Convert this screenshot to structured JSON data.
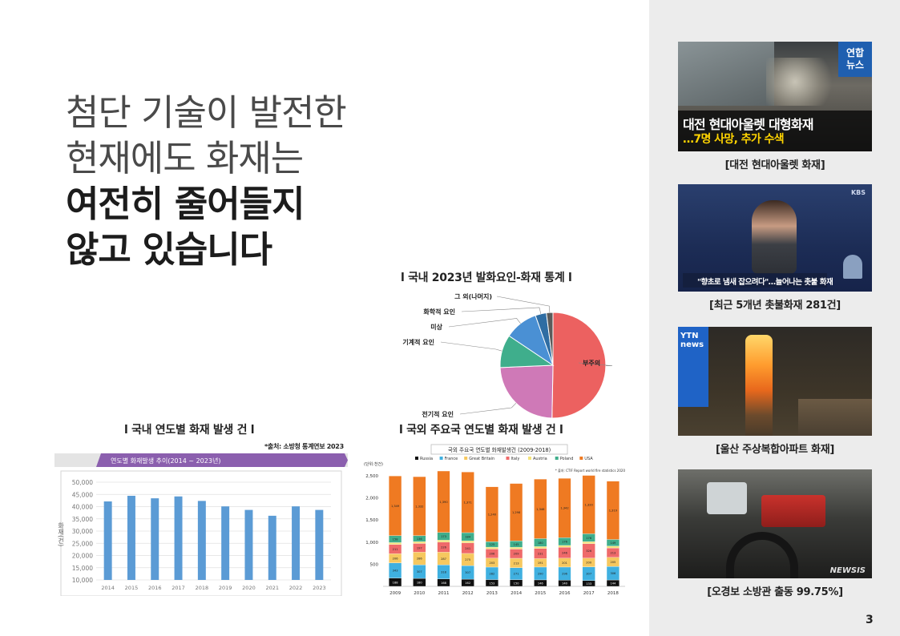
{
  "headline": {
    "line1": "첨단 기술이 발전한",
    "line2": "현재에도 화재는",
    "line3": "여전히 줄어들지",
    "line4": "않고 있습니다"
  },
  "sections": {
    "pie_title": "l 국내 2023년 발화요인-화재 통계 l",
    "domestic_title": "l 국내 연도별 화재 발생 건 l",
    "foreign_title": "l 국외 주요국 연도별 화재 발생 건 l"
  },
  "domestic_source": "*출처: 소방청 통계연보 2023",
  "domestic_header": "연도별 화재발생 추이(2014 ~ 2023년)",
  "domestic_ylabel": "화재(건)",
  "foreign_chart_title": "국외 주요국 연도별 화재발생건 (2009-2018)",
  "foreign_unit": "(단위:천건)",
  "foreign_source": "* 출처: CTIF Report world fire statistics 2020",
  "news": [
    {
      "caption": "[대전 현대아울렛 화재]",
      "badge": "연합\n뉴스",
      "overlay1": "대전 현대아울렛 대형화재",
      "overlay2": "…7명 사망, 추가 수색"
    },
    {
      "caption": "[최근 5개년 촛불화재 281건]",
      "badge": "KBS",
      "overlay1": "\"향초로 냄새 잡으려다\"…늘어나는 촛불 화재"
    },
    {
      "caption": "[울산 주상복합아파트 화재]",
      "badge": "YTN news"
    },
    {
      "caption": "[오경보 소방관 출동 99.75%]",
      "badge": "NEWSIS"
    }
  ],
  "page_number": "3",
  "chart_data": [
    {
      "type": "pie",
      "title": "l 국내 2023년 발화요인-화재 통계 l",
      "slices": [
        {
          "label": "부주의",
          "value": 50.3,
          "color": "#ec6160"
        },
        {
          "label": "전기적 요인",
          "value": 24.0,
          "color": "#cf79b7"
        },
        {
          "label": "기계적 요인",
          "value": 10.1,
          "color": "#3fae8c"
        },
        {
          "label": "미상",
          "value": 10.2,
          "color": "#4a90d4"
        },
        {
          "label": "화학적 요인",
          "value": 3.4,
          "color": "#2f6da3"
        },
        {
          "label": "그 외(나머지)",
          "value": 2.0,
          "color": "#5b5b5b"
        }
      ]
    },
    {
      "type": "bar",
      "title": "연도별 화재발생 추이(2014 ~ 2023년)",
      "categories": [
        "2014",
        "2015",
        "2016",
        "2017",
        "2018",
        "2019",
        "2020",
        "2021",
        "2022",
        "2023"
      ],
      "values": [
        42135,
        44435,
        43413,
        44178,
        42338,
        40103,
        38659,
        36267,
        40113,
        38659
      ],
      "ylabel": "화재(건)",
      "ylim": [
        10000,
        50000
      ],
      "yticks": [
        "50,000",
        "45,000",
        "40,000",
        "35,000",
        "30,000",
        "25,000",
        "20,000",
        "15,000",
        "10,000"
      ],
      "color": "#5b9bd5",
      "grid": true
    },
    {
      "type": "bar",
      "stacked": true,
      "title": "국외 주요국 연도별 화재발생건 (2009-2018)",
      "categories": [
        "2009",
        "2010",
        "2011",
        "2012",
        "2013",
        "2014",
        "2015",
        "2016",
        "2017",
        "2018"
      ],
      "yticks": [
        "2,500",
        "2,000",
        "1,500",
        "1,000",
        "500"
      ],
      "ylim": [
        0,
        2500
      ],
      "series": [
        {
          "name": "Russia",
          "color": "#111111",
          "values": [
            188,
            180,
            168,
            162,
            153,
            150,
            146,
            140,
            133,
            144
          ]
        },
        {
          "name": "France",
          "color": "#3fb0e0",
          "values": [
            343,
            307,
            318,
            307,
            282,
            271,
            290,
            296,
            307,
            306
          ]
        },
        {
          "name": "Great Britain",
          "color": "#f6c85f",
          "values": [
            206,
            286,
            287,
            275,
            203,
            213,
            191,
            201,
            200,
            205
          ]
        },
        {
          "name": "Italy",
          "color": "#ef6a6a",
          "values": [
            211,
            197,
            226,
            241,
            206,
            209,
            231,
            246,
            326,
            213
          ]
        },
        {
          "name": "Austria",
          "color": "#f3e37a",
          "values": [
            41,
            42,
            46,
            45,
            42,
            40,
            41,
            42,
            46,
            43
          ]
        },
        {
          "name": "Poland",
          "color": "#3fae8c",
          "values": [
            158,
            136,
            173,
            184,
            125,
            145,
            180,
            176,
            176,
            149
          ]
        },
        {
          "name": "USA",
          "color": "#ef7a22",
          "values": [
            1349,
            1332,
            1390,
            1371,
            1240,
            1298,
            1346,
            1342,
            1320,
            1319
          ]
        }
      ]
    }
  ]
}
